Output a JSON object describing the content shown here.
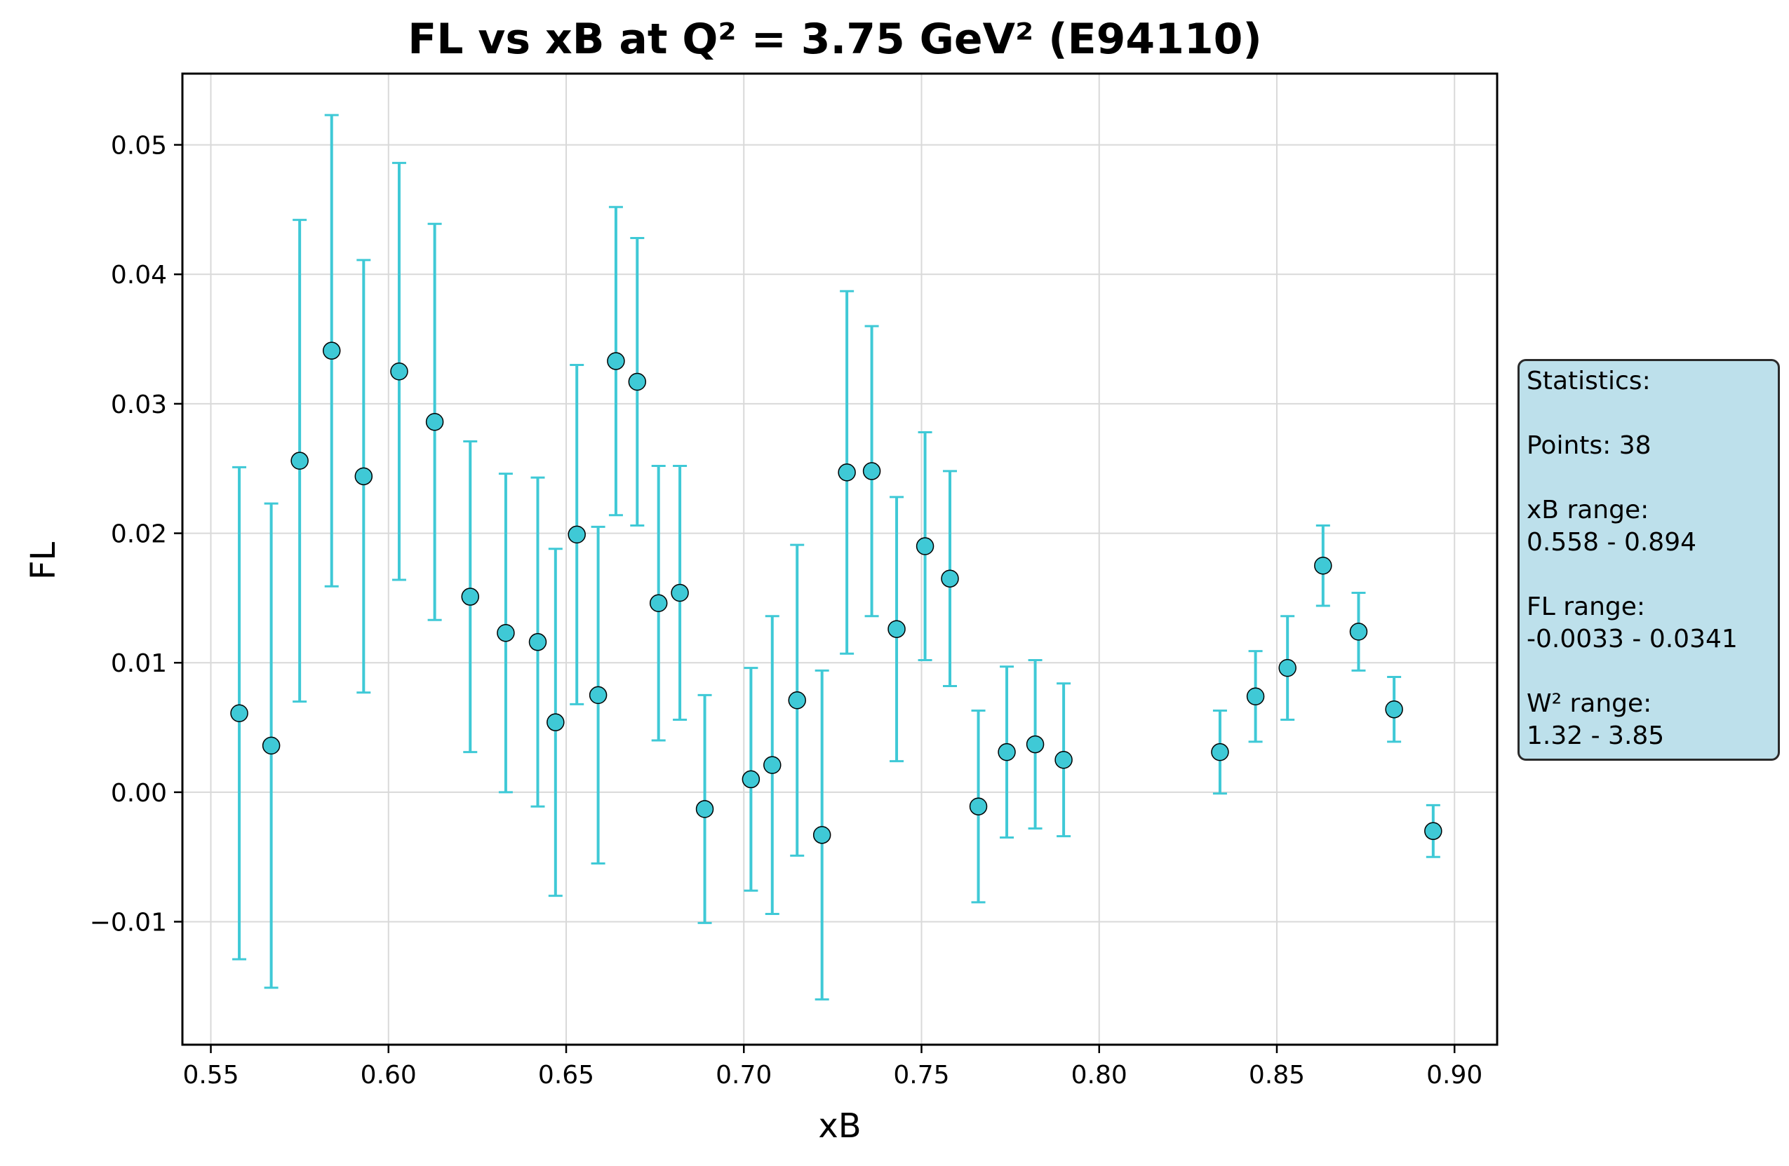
{
  "chart_data": {
    "type": "scatter",
    "title": "FL vs xB at Q² = 3.75 GeV² (E94110)",
    "xlabel": "xB",
    "ylabel": "FL",
    "xlim": [
      0.542,
      0.912
    ],
    "ylim": [
      -0.0195,
      0.0555
    ],
    "xticks": [
      0.55,
      0.6,
      0.65,
      0.7,
      0.75,
      0.8,
      0.85,
      0.9
    ],
    "xtick_labels": [
      "0.55",
      "0.60",
      "0.65",
      "0.70",
      "0.75",
      "0.80",
      "0.85",
      "0.90"
    ],
    "yticks": [
      -0.01,
      0.0,
      0.01,
      0.02,
      0.03,
      0.04,
      0.05
    ],
    "ytick_labels": [
      "−0.01",
      "0.00",
      "0.01",
      "0.02",
      "0.03",
      "0.04",
      "0.05"
    ],
    "grid": true,
    "marker_color": "#3fc9d6",
    "errorbar_color": "#3fc9d6",
    "points": [
      {
        "x": 0.558,
        "y": 0.0061,
        "err": 0.019
      },
      {
        "x": 0.567,
        "y": 0.0036,
        "err": 0.0187
      },
      {
        "x": 0.575,
        "y": 0.0256,
        "err": 0.0186
      },
      {
        "x": 0.584,
        "y": 0.0341,
        "err": 0.0182
      },
      {
        "x": 0.593,
        "y": 0.0244,
        "err": 0.0167
      },
      {
        "x": 0.603,
        "y": 0.0325,
        "err": 0.0161
      },
      {
        "x": 0.613,
        "y": 0.0286,
        "err": 0.0153
      },
      {
        "x": 0.623,
        "y": 0.0151,
        "err": 0.012
      },
      {
        "x": 0.633,
        "y": 0.0123,
        "err": 0.0123
      },
      {
        "x": 0.642,
        "y": 0.0116,
        "err": 0.0127
      },
      {
        "x": 0.647,
        "y": 0.0054,
        "err": 0.0134
      },
      {
        "x": 0.653,
        "y": 0.0199,
        "err": 0.0131
      },
      {
        "x": 0.659,
        "y": 0.0075,
        "err": 0.013
      },
      {
        "x": 0.664,
        "y": 0.0333,
        "err": 0.0119
      },
      {
        "x": 0.67,
        "y": 0.0317,
        "err": 0.0111
      },
      {
        "x": 0.676,
        "y": 0.0146,
        "err": 0.0106
      },
      {
        "x": 0.682,
        "y": 0.0154,
        "err": 0.0098
      },
      {
        "x": 0.689,
        "y": -0.0013,
        "err": 0.0088
      },
      {
        "x": 0.702,
        "y": 0.001,
        "err": 0.0086
      },
      {
        "x": 0.708,
        "y": 0.0021,
        "err": 0.0115
      },
      {
        "x": 0.715,
        "y": 0.0071,
        "err": 0.012
      },
      {
        "x": 0.722,
        "y": -0.0033,
        "err": 0.0127
      },
      {
        "x": 0.729,
        "y": 0.0247,
        "err": 0.014
      },
      {
        "x": 0.736,
        "y": 0.0248,
        "err": 0.0112
      },
      {
        "x": 0.743,
        "y": 0.0126,
        "err": 0.0102
      },
      {
        "x": 0.751,
        "y": 0.019,
        "err": 0.0088
      },
      {
        "x": 0.758,
        "y": 0.0165,
        "err": 0.0083
      },
      {
        "x": 0.766,
        "y": -0.0011,
        "err": 0.0074
      },
      {
        "x": 0.774,
        "y": 0.0031,
        "err": 0.0066
      },
      {
        "x": 0.782,
        "y": 0.0037,
        "err": 0.0065
      },
      {
        "x": 0.79,
        "y": 0.0025,
        "err": 0.0059
      },
      {
        "x": 0.834,
        "y": 0.0031,
        "err": 0.0032
      },
      {
        "x": 0.844,
        "y": 0.0074,
        "err": 0.0035
      },
      {
        "x": 0.853,
        "y": 0.0096,
        "err": 0.004
      },
      {
        "x": 0.863,
        "y": 0.0175,
        "err": 0.0031
      },
      {
        "x": 0.873,
        "y": 0.0124,
        "err": 0.003
      },
      {
        "x": 0.883,
        "y": 0.0064,
        "err": 0.0025
      },
      {
        "x": 0.894,
        "y": -0.003,
        "err": 0.002
      }
    ]
  },
  "stats": {
    "header": "Statistics:",
    "points": "Points: 38",
    "xb_label": "xB range:",
    "xb_value": "0.558 - 0.894",
    "fl_label": "FL range:",
    "fl_value": "-0.0033 - 0.0341",
    "w2_label": "W² range:",
    "w2_value": "1.32 - 3.85"
  }
}
